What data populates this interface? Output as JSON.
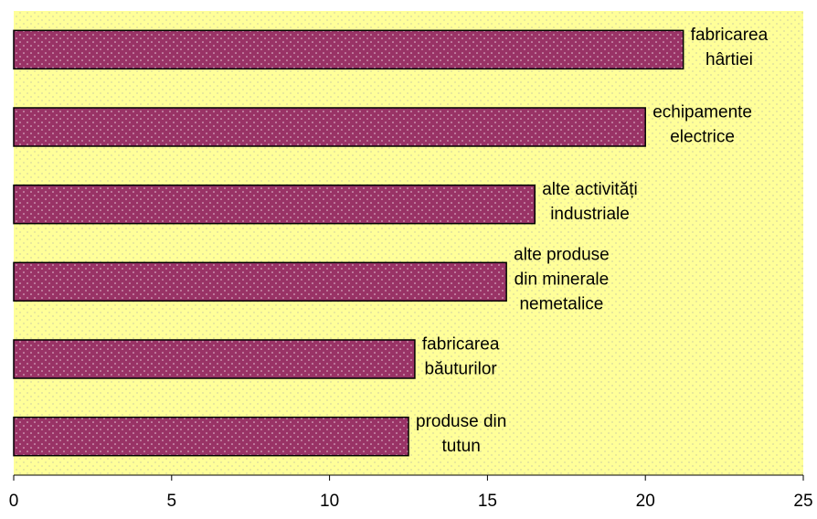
{
  "chart_data": {
    "type": "barh",
    "categories": [
      [
        "fabricarea",
        "hârtiei"
      ],
      [
        "echipamente",
        "electrice"
      ],
      [
        "alte activități",
        "industriale"
      ],
      [
        "alte produse",
        "din minerale",
        "nemetalice"
      ],
      [
        "fabricarea",
        "băuturilor"
      ],
      [
        "produse din",
        "tutun"
      ]
    ],
    "values": [
      21.2,
      20.0,
      16.5,
      15.6,
      12.7,
      12.5
    ],
    "color": "#993366",
    "xlim": [
      0,
      25
    ],
    "xticks": [
      0,
      5,
      10,
      15,
      20,
      25
    ]
  }
}
